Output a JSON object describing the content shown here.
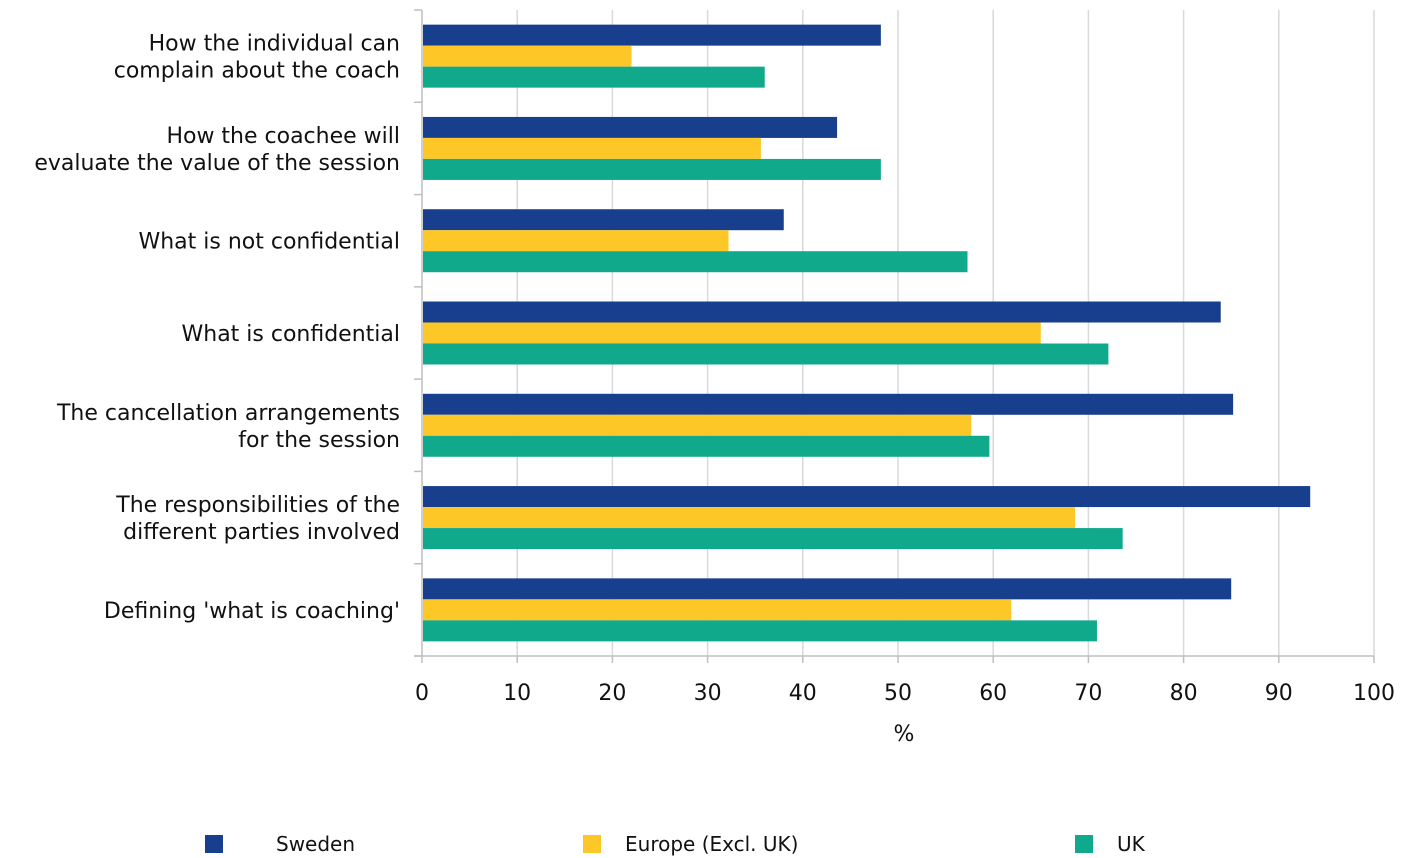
{
  "chart_data": {
    "type": "bar",
    "orientation": "horizontal",
    "categories": [
      [
        "How the individual can",
        "complain about the coach"
      ],
      [
        "How the coachee will",
        "evaluate the value of the session"
      ],
      [
        "What is not confidential"
      ],
      [
        "What is confidential"
      ],
      [
        "The cancellation arrangements",
        "for the session"
      ],
      [
        "The responsibilities of the",
        "different parties involved"
      ],
      [
        "Defining 'what is coaching'"
      ]
    ],
    "series": [
      {
        "name": "Sweden",
        "color": "#173f8e",
        "values": [
          48.2,
          43.6,
          38.0,
          83.9,
          85.2,
          93.3,
          85.0
        ]
      },
      {
        "name": "Europe (Excl. UK)",
        "color": "#fdc827",
        "values": [
          22.0,
          35.6,
          32.2,
          65.0,
          57.7,
          68.6,
          61.9
        ]
      },
      {
        "name": "UK",
        "color": "#10a98b",
        "values": [
          36.0,
          48.2,
          57.3,
          72.1,
          59.6,
          73.6,
          70.9
        ]
      }
    ],
    "xlabel": "%",
    "xlim": [
      0,
      100
    ],
    "xticks": [
      0,
      10,
      20,
      30,
      40,
      50,
      60,
      70,
      80,
      90,
      100
    ],
    "grid": "vertical",
    "legend_position": "bottom"
  }
}
